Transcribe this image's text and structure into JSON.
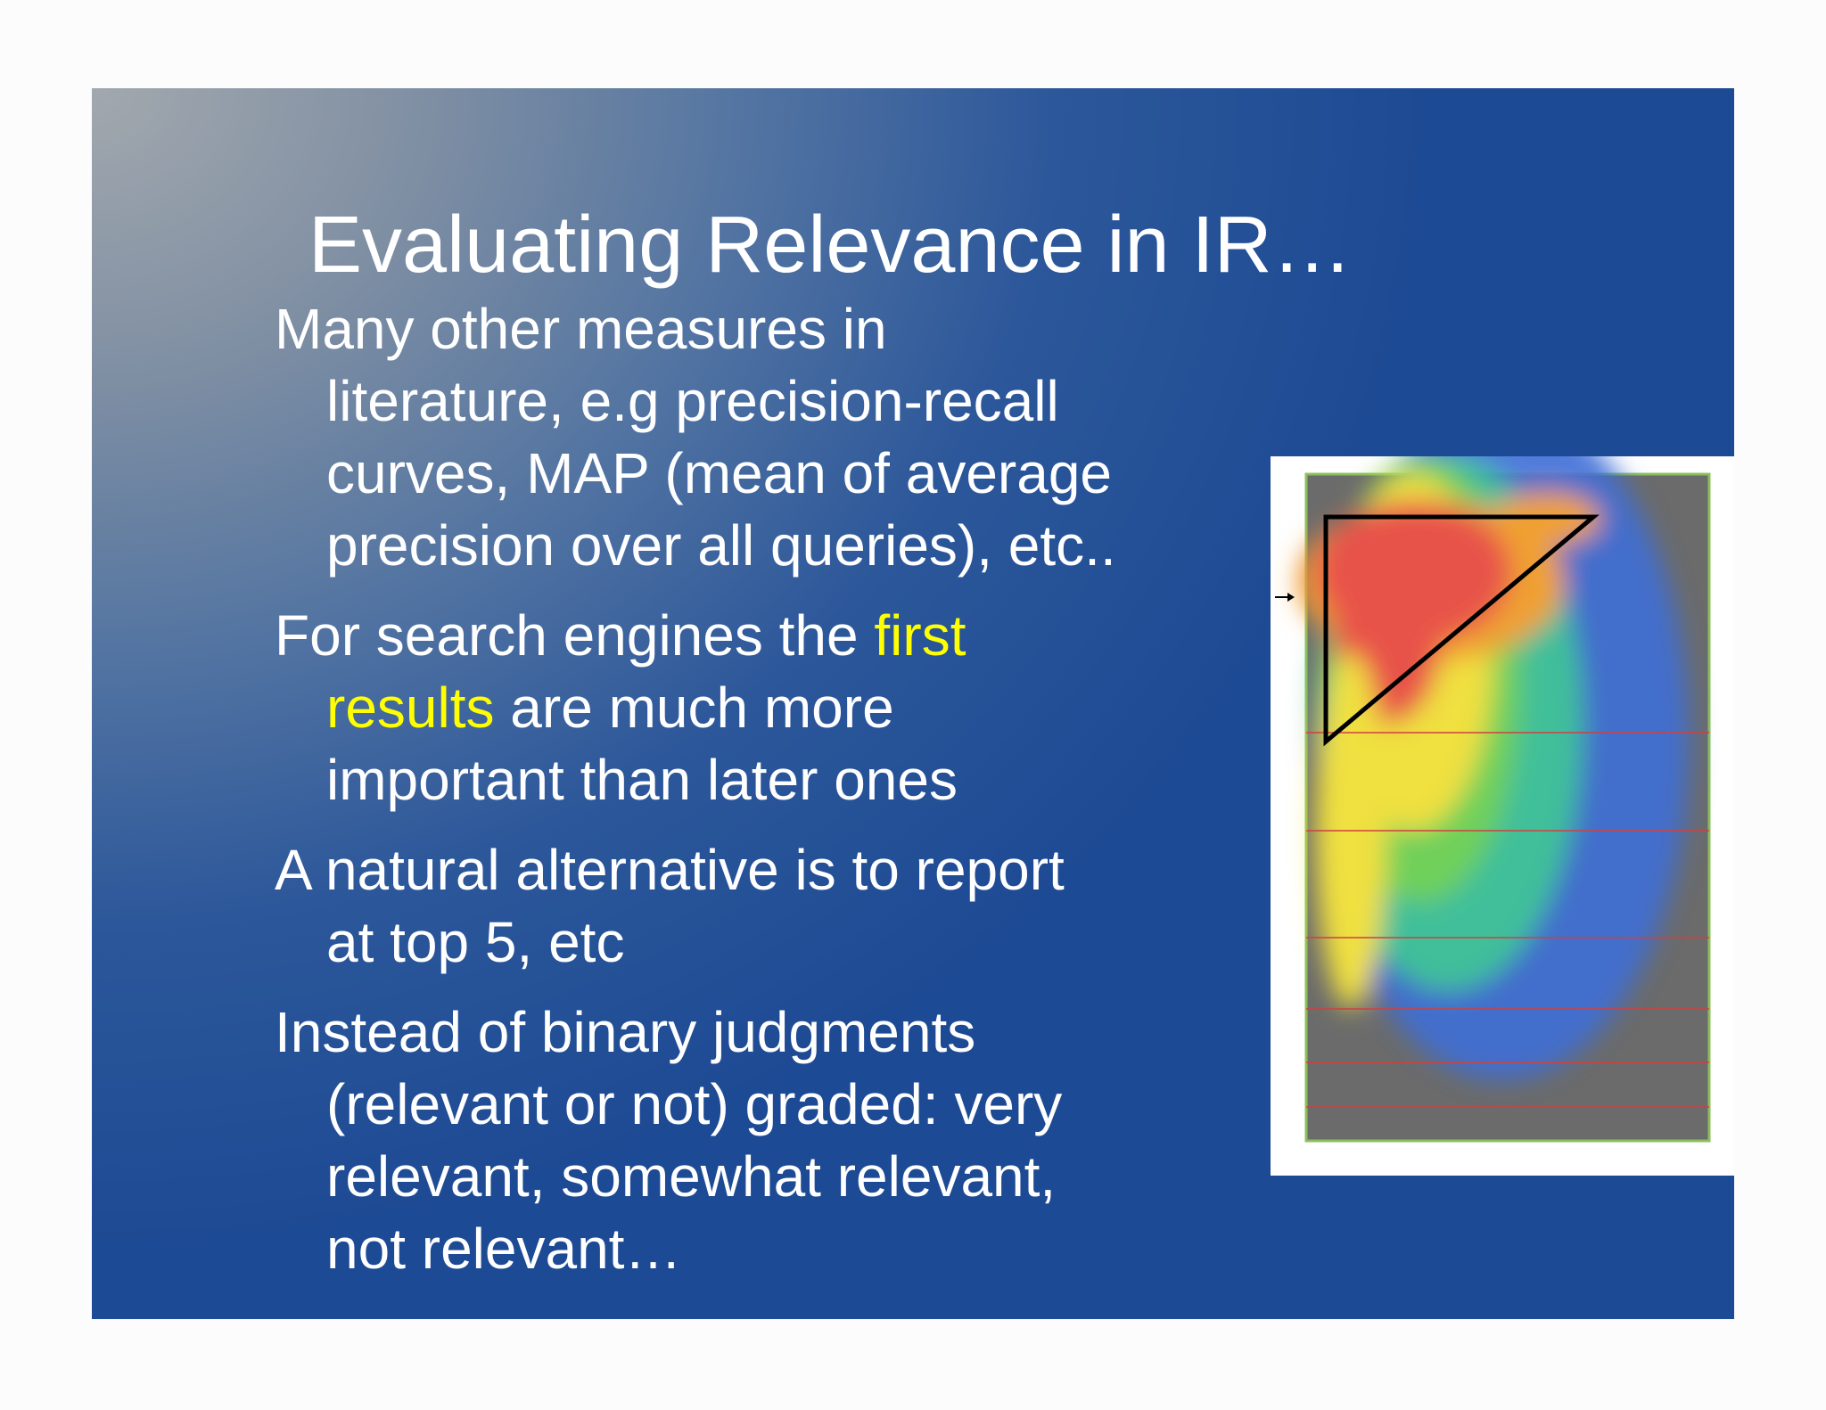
{
  "title": "Evaluating Relevance in IR…",
  "bullets": [
    {
      "lines": [
        [
          {
            "text": "Many other measures in"
          }
        ],
        [
          {
            "text": "literature, e.g precision-recall"
          }
        ],
        [
          {
            "text": "curves, MAP (mean of average"
          }
        ],
        [
          {
            "text": "precision over all queries), etc.."
          }
        ]
      ]
    },
    {
      "lines": [
        [
          {
            "text": "For search engines the "
          },
          {
            "text": "first",
            "color": "#ffff00"
          }
        ],
        [
          {
            "text": "results",
            "color": "#ffff00"
          },
          {
            "text": " are much more"
          }
        ],
        [
          {
            "text": "important than later ones"
          }
        ]
      ]
    },
    {
      "lines": [
        [
          {
            "text": "A natural alternative is to report"
          }
        ],
        [
          {
            "text": "at top 5, etc"
          }
        ]
      ]
    },
    {
      "lines": [
        [
          {
            "text": "Instead of binary judgments"
          }
        ],
        [
          {
            "text": "(relevant or not) graded: very"
          }
        ],
        [
          {
            "text": "relevant, somewhat relevant,"
          }
        ],
        [
          {
            "text": "not relevant…"
          }
        ]
      ]
    }
  ]
}
